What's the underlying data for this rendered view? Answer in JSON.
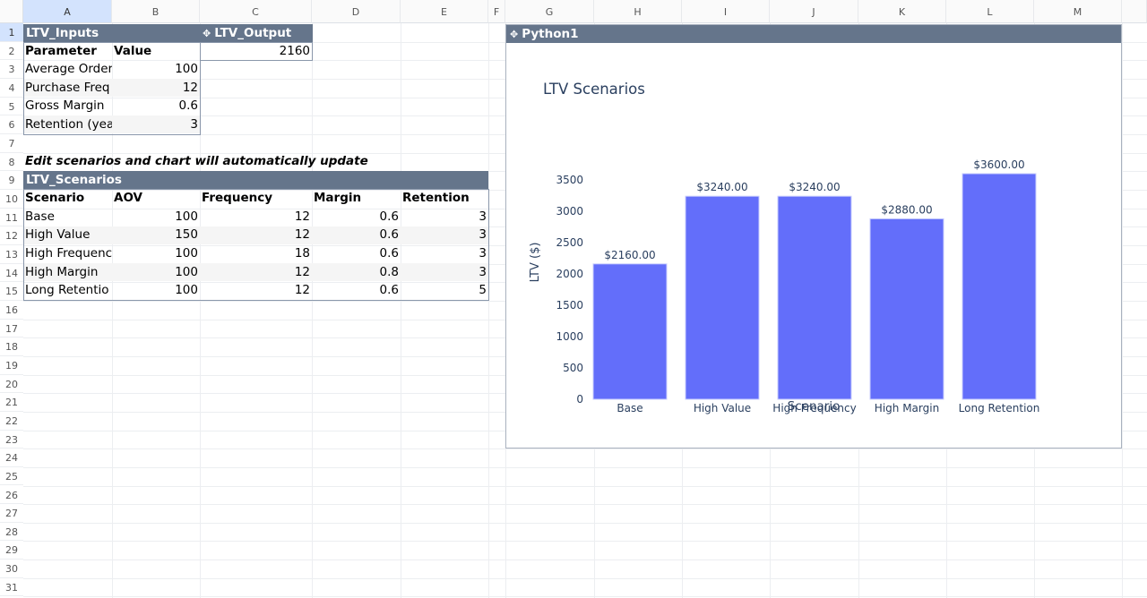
{
  "sheet": {
    "columns": [
      "A",
      "B",
      "C",
      "D",
      "E",
      "F",
      "G",
      "H",
      "I",
      "J",
      "K",
      "L",
      "M"
    ],
    "rows": [
      1,
      2,
      3,
      4,
      5,
      6,
      7,
      8,
      9,
      10,
      11,
      12,
      13,
      14,
      15,
      16,
      17,
      18,
      19,
      20,
      21,
      22,
      23,
      24,
      25,
      26,
      27,
      28,
      29,
      30,
      31
    ],
    "selected_column": "A",
    "selected_row": 1
  },
  "ltv_inputs": {
    "title": "LTV_Inputs",
    "headers": {
      "parameter": "Parameter",
      "value": "Value"
    },
    "rows": [
      {
        "parameter": "Average Order",
        "value": "100"
      },
      {
        "parameter": "Purchase Freq",
        "value": "12"
      },
      {
        "parameter": "Gross Margin",
        "value": "0.6"
      },
      {
        "parameter": "Retention (yea",
        "value": "3"
      }
    ]
  },
  "ltv_output": {
    "icon": "python-icon",
    "title": "LTV_Output",
    "value": "2160"
  },
  "note": "Edit scenarios and chart will automatically update",
  "ltv_scenarios": {
    "title": "LTV_Scenarios",
    "headers": [
      "Scenario",
      "AOV",
      "Frequency",
      "Margin",
      "Retention"
    ],
    "rows": [
      [
        "Base",
        "100",
        "12",
        "0.6",
        "3"
      ],
      [
        "High Value",
        "150",
        "12",
        "0.6",
        "3"
      ],
      [
        "High Frequenc",
        "100",
        "18",
        "0.6",
        "3"
      ],
      [
        "High Margin",
        "100",
        "12",
        "0.8",
        "3"
      ],
      [
        "Long Retentio",
        "100",
        "12",
        "0.6",
        "5"
      ]
    ]
  },
  "python_panel": {
    "icon": "python-icon",
    "title": "Python1"
  },
  "colors": {
    "table_header": "#65758b",
    "bar": "#636efa",
    "axis_text": "#2a3f5f",
    "selected_header": "#d3e3fd"
  },
  "chart_data": {
    "type": "bar",
    "title": "LTV Scenarios",
    "xlabel": "Scenario",
    "ylabel": "LTV ($)",
    "categories": [
      "Base",
      "High Value",
      "High Frequency",
      "High Margin",
      "Long Retention"
    ],
    "values": [
      2160,
      3240,
      3240,
      2880,
      3600
    ],
    "data_labels": [
      "$2160.00",
      "$3240.00",
      "$3240.00",
      "$2880.00",
      "$3600.00"
    ],
    "yticks": [
      0,
      500,
      1000,
      1500,
      2000,
      2500,
      3000,
      3500
    ],
    "ylim": [
      0,
      3600
    ],
    "grid": false,
    "legend": "none"
  }
}
